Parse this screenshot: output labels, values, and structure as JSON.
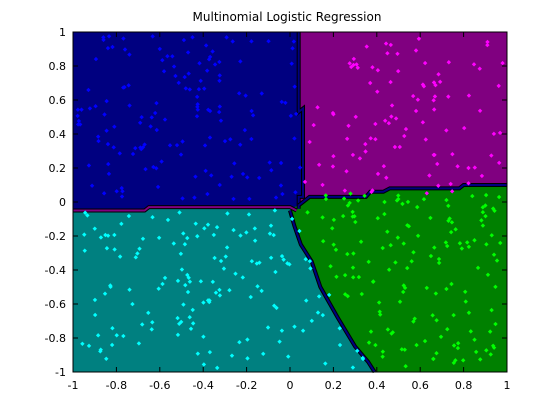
{
  "chart_data": {
    "type": "scatter",
    "title": "Multinomial Logistic Regression",
    "xlabel": "",
    "ylabel": "",
    "xlim": [
      -1,
      1
    ],
    "ylim": [
      -1,
      1
    ],
    "xticks": [
      "-1",
      "-0.8",
      "-0.6",
      "-0.4",
      "-0.2",
      "0",
      "0.2",
      "0.4",
      "0.6",
      "0.8",
      "1"
    ],
    "yticks": [
      "1",
      "0.8",
      "0.6",
      "0.4",
      "0.2",
      "0",
      "-0.2",
      "-0.4",
      "-0.6",
      "-0.8",
      "-1"
    ],
    "grid": false,
    "regions": [
      {
        "class": "blue",
        "fill": "#000080"
      },
      {
        "class": "magenta",
        "fill": "#800080"
      },
      {
        "class": "cyan",
        "fill": "#008080"
      },
      {
        "class": "green",
        "fill": "#008000"
      }
    ],
    "boundaries": [
      {
        "between": "blue-magenta",
        "color": "#000080",
        "points": [
          [
            0.04,
            1.0
          ],
          [
            0.04,
            0.53
          ],
          [
            0.06,
            0.55
          ],
          [
            0.06,
            0.03
          ],
          [
            0.04,
            0.03
          ],
          [
            0.04,
            -0.04
          ]
        ]
      },
      {
        "between": "blue-cyan",
        "color": "#800080",
        "points": [
          [
            -1.0,
            -0.05
          ],
          [
            -0.67,
            -0.05
          ],
          [
            -0.65,
            -0.03
          ],
          [
            0.0,
            -0.03
          ],
          [
            0.03,
            -0.05
          ]
        ]
      },
      {
        "between": "magenta-green",
        "color": "#000080",
        "points": [
          [
            0.04,
            -0.02
          ],
          [
            0.09,
            0.03
          ],
          [
            0.35,
            0.03
          ],
          [
            0.37,
            0.06
          ],
          [
            0.43,
            0.06
          ],
          [
            0.46,
            0.08
          ],
          [
            0.78,
            0.08
          ],
          [
            0.8,
            0.1
          ],
          [
            1.0,
            0.1
          ]
        ]
      },
      {
        "between": "cyan-green",
        "color": "#000080",
        "points": [
          [
            0.0,
            -0.05
          ],
          [
            0.02,
            -0.14
          ],
          [
            0.05,
            -0.25
          ],
          [
            0.1,
            -0.35
          ],
          [
            0.14,
            -0.5
          ],
          [
            0.22,
            -0.68
          ],
          [
            0.3,
            -0.85
          ],
          [
            0.36,
            -0.94
          ],
          [
            0.39,
            -1.0
          ]
        ]
      }
    ],
    "series": [
      {
        "name": "",
        "color": "#0000ff",
        "n": 150
      },
      {
        "name": "",
        "color": "#ff00ff",
        "n": 100
      },
      {
        "name": "",
        "color": "#00ffff",
        "n": 150
      },
      {
        "name": "",
        "color": "#00ff00",
        "n": 150
      }
    ],
    "marker": "diamond",
    "point_seed": 7
  }
}
